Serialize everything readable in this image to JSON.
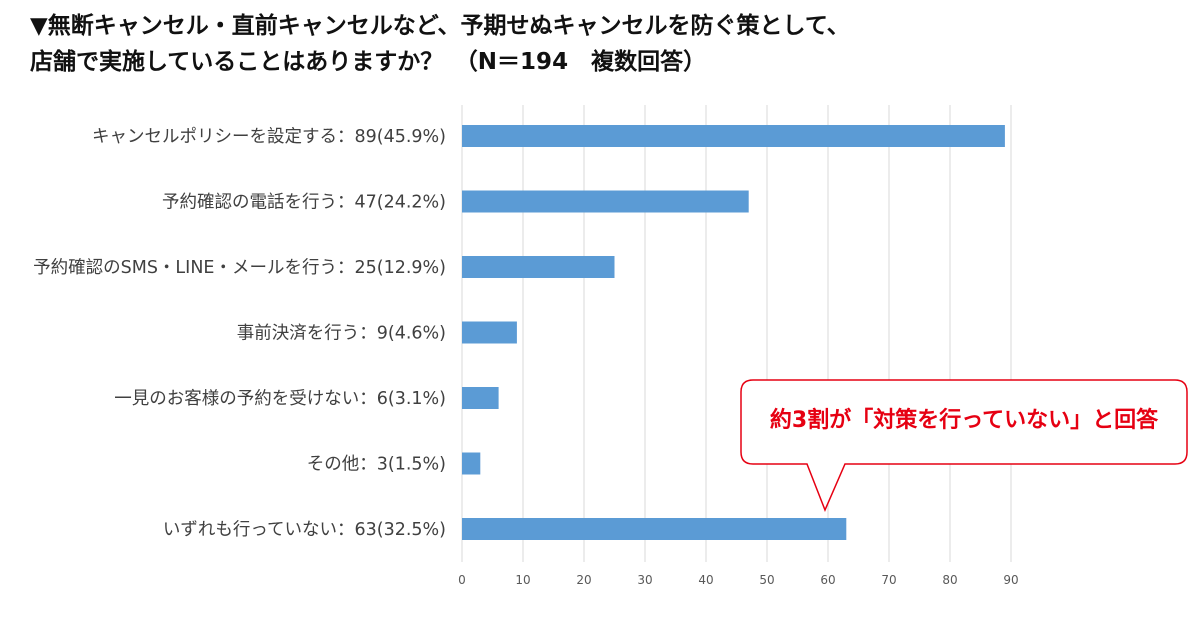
{
  "title_line1": "▼無断キャンセル・直前キャンセルなど、予期せぬキャンセルを防ぐ策として、",
  "title_line2": "店舗で実施していることはありますか？　（N＝194　複数回答）",
  "callout_text": "約3割が「対策を行っていない」と回答",
  "colors": {
    "bar": "#5b9bd5",
    "grid": "#d9d9d9",
    "callout_border": "#e60012",
    "callout_text": "#e60012"
  },
  "chart_data": {
    "type": "bar",
    "orientation": "horizontal",
    "categories": [
      "キャンセルポリシーを設定する：89(45.9%)",
      "予約確認の電話を行う：47(24.2%)",
      "予約確認のSMS・LINE・メールを行う：25(12.9%)",
      "事前決済を行う：9(4.6%)",
      "一見のお客様の予約を受けない：6(3.1%)",
      "その他：3(1.5%)",
      "いずれも行っていない：63(32.5%)"
    ],
    "values": [
      89,
      47,
      25,
      9,
      6,
      3,
      63
    ],
    "xlim": [
      0,
      90
    ],
    "xticks": [
      "0",
      "10",
      "20",
      "30",
      "40",
      "50",
      "60",
      "70",
      "80",
      "90"
    ],
    "grid": true,
    "legend": false
  }
}
